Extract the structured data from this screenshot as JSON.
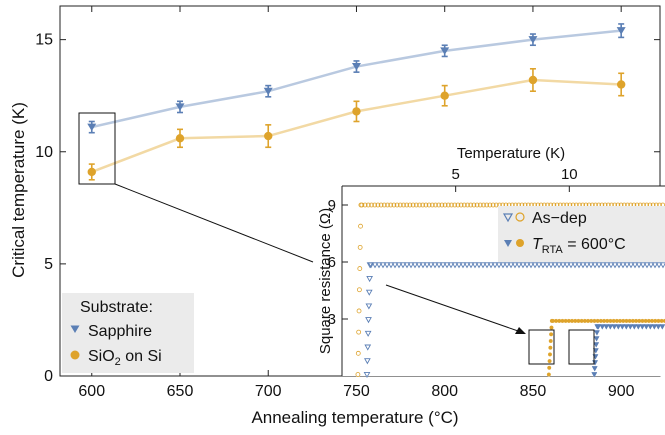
{
  "chart_data": [
    {
      "type": "line",
      "xlabel": "Annealing temperature (°C)",
      "ylabel": "Critical temperature (K)",
      "xlim": [
        582,
        922
      ],
      "ylim": [
        0,
        16.5
      ],
      "x_ticks": [
        "600",
        "650",
        "700",
        "750",
        "800",
        "850",
        "900"
      ],
      "y_ticks": [
        "0",
        "5",
        "10",
        "15"
      ],
      "grid": false,
      "legend": {
        "title": "Substrate:",
        "position": "bottom-left",
        "entries": [
          {
            "label": "Sapphire",
            "marker": "triangle-down"
          },
          {
            "label_main": "SiO",
            "label_sub": "2",
            "label_rest": " on Si",
            "marker": "circle"
          }
        ]
      },
      "series": [
        {
          "name": "Sapphire",
          "color": "#5b7fb5",
          "line_color": "#b9c9e0",
          "x": [
            600,
            650,
            700,
            750,
            800,
            850,
            900
          ],
          "y": [
            11.1,
            12.0,
            12.7,
            13.8,
            14.5,
            15.0,
            15.4
          ],
          "err": [
            0.25,
            0.25,
            0.25,
            0.25,
            0.25,
            0.25,
            0.3
          ]
        },
        {
          "name": "SiO2 on Si",
          "color": "#dea32b",
          "line_color": "#f2d9a4",
          "x": [
            600,
            650,
            700,
            750,
            800,
            850,
            900
          ],
          "y": [
            9.1,
            10.6,
            10.7,
            11.8,
            12.5,
            13.2,
            13.0
          ],
          "err": [
            0.35,
            0.4,
            0.5,
            0.45,
            0.45,
            0.5,
            0.5
          ]
        }
      ]
    },
    {
      "type": "scatter",
      "xlabel": "Temperature (K)",
      "ylabel": "Square resistance (Ω)",
      "xlim": [
        0,
        14.2
      ],
      "ylim": [
        0,
        10
      ],
      "x_ticks": [
        "5",
        "10"
      ],
      "y_ticks": [
        "3",
        "6",
        "9"
      ],
      "legend": {
        "position": "top-right",
        "entries": [
          {
            "label": "As−dep"
          },
          {
            "label_italic": "T",
            "label_sub": "RTA",
            "label_rest": " = 600°C"
          }
        ]
      },
      "series": [
        {
          "name": "Sapphire As−dep",
          "color": "#5b7fb5",
          "marker": "open-triangle",
          "x": [
            1.1,
            14.2
          ],
          "transition_k": 1.1,
          "plateau_ohm": 5.85
        },
        {
          "name": "SiO2 As−dep",
          "color": "#dea32b",
          "marker": "open-circle",
          "x": [
            0.6,
            14.2
          ],
          "transition_k": 0.7,
          "plateau_ohm": 9.0
        },
        {
          "name": "Sapphire 600°C",
          "color": "#5b7fb5",
          "marker": "filled-triangle",
          "x": [
            11.1,
            14.2
          ],
          "transition_k": 11.1,
          "plateau_ohm": 2.6
        },
        {
          "name": "SiO2 600°C",
          "color": "#dea32b",
          "marker": "filled-circle",
          "x": [
            9.1,
            14.2
          ],
          "transition_k": 9.1,
          "plateau_ohm": 2.9
        }
      ]
    }
  ]
}
